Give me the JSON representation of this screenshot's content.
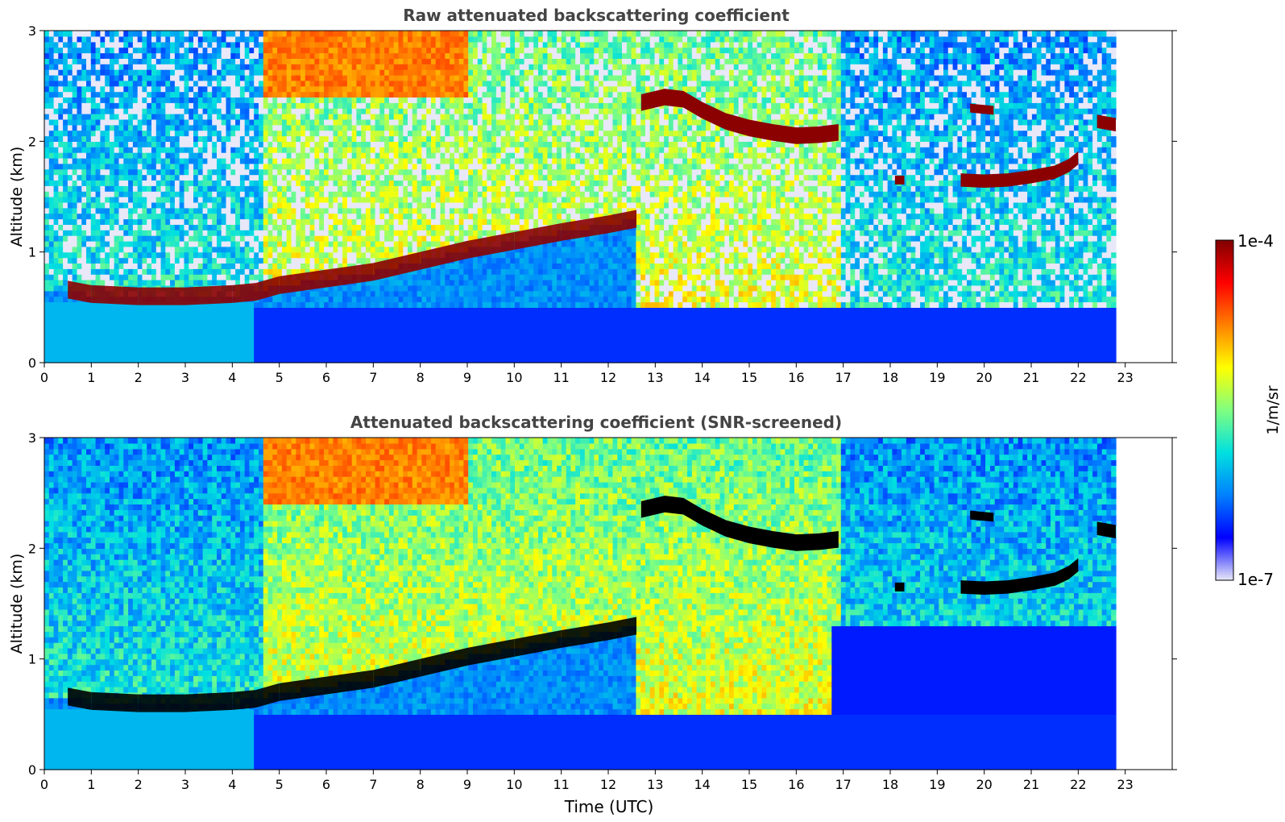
{
  "figure": {
    "xlabel": "Time (UTC)",
    "colorbar": {
      "label": "1/m/sr",
      "max_label": "1e-4",
      "min_label": "1e-7",
      "scale": "log",
      "colormap": "jet",
      "colormap_stops": [
        "#e8e8f8",
        "#0000ff",
        "#0080ff",
        "#00e0e0",
        "#80ff80",
        "#ffff00",
        "#ff8000",
        "#ff0000",
        "#800000"
      ]
    }
  },
  "chart_data": [
    {
      "type": "heatmap",
      "title": "Raw attenuated backscattering coefficient",
      "xlabel": "",
      "ylabel": "Altitude (km)",
      "xlim": [
        0,
        24
      ],
      "ylim": [
        0,
        3
      ],
      "x_ticks": [
        "0",
        "1",
        "2",
        "3",
        "4",
        "5",
        "6",
        "7",
        "8",
        "9",
        "10",
        "11",
        "12",
        "13",
        "14",
        "15",
        "16",
        "17",
        "18",
        "19",
        "20",
        "21",
        "22",
        "23"
      ],
      "y_ticks": [
        "0",
        "1",
        "2",
        "3"
      ],
      "data_extent_hours": [
        0,
        22.8
      ],
      "features": {
        "boundary_layer_top_km": [
          [
            0.5,
            0.66
          ],
          [
            1,
            0.62
          ],
          [
            2,
            0.6
          ],
          [
            3,
            0.6
          ],
          [
            4,
            0.62
          ],
          [
            4.5,
            0.64
          ],
          [
            5,
            0.7
          ],
          [
            6,
            0.76
          ],
          [
            7,
            0.82
          ],
          [
            8,
            0.92
          ],
          [
            9,
            1.02
          ],
          [
            10,
            1.1
          ],
          [
            11,
            1.18
          ],
          [
            12,
            1.25
          ],
          [
            12.6,
            1.3
          ]
        ],
        "cloud_layers": [
          {
            "t": [
              12.7,
              13.2,
              13.6,
              14.0,
              14.5,
              15.0,
              15.5,
              16.0,
              16.5,
              16.9
            ],
            "alt_km": [
              2.35,
              2.4,
              2.38,
              2.28,
              2.18,
              2.12,
              2.08,
              2.05,
              2.06,
              2.08
            ],
            "thickness_km": 0.15
          },
          {
            "t": [
              19.5,
              20.0,
              20.5,
              21.0,
              21.5,
              21.8,
              22.0
            ],
            "alt_km": [
              1.65,
              1.64,
              1.65,
              1.68,
              1.72,
              1.78,
              1.85
            ],
            "thickness_km": 0.12
          },
          {
            "t": [
              18.1,
              18.3
            ],
            "alt_km": [
              1.65,
              1.65
            ],
            "thickness_km": 0.08
          },
          {
            "t": [
              19.7,
              20.2
            ],
            "alt_km": [
              2.3,
              2.28
            ],
            "thickness_km": 0.08
          },
          {
            "t": [
              22.4,
              22.8
            ],
            "alt_km": [
              2.18,
              2.15
            ],
            "thickness_km": 0.12
          }
        ]
      }
    },
    {
      "type": "heatmap",
      "title": "Attenuated backscattering coefficient (SNR-screened)",
      "xlabel": "Time (UTC)",
      "ylabel": "Altitude (km)",
      "xlim": [
        0,
        24
      ],
      "ylim": [
        0,
        3
      ],
      "x_ticks": [
        "0",
        "1",
        "2",
        "3",
        "4",
        "5",
        "6",
        "7",
        "8",
        "9",
        "10",
        "11",
        "12",
        "13",
        "14",
        "15",
        "16",
        "17",
        "18",
        "19",
        "20",
        "21",
        "22",
        "23"
      ],
      "y_ticks": [
        "0",
        "1",
        "2",
        "3"
      ],
      "data_extent_hours": [
        0,
        22.8
      ],
      "features": {
        "saturated_color": "#000000",
        "boundary_layer_top_km": [
          [
            0.5,
            0.66
          ],
          [
            1,
            0.62
          ],
          [
            2,
            0.6
          ],
          [
            3,
            0.6
          ],
          [
            4,
            0.62
          ],
          [
            4.5,
            0.64
          ],
          [
            5,
            0.7
          ],
          [
            6,
            0.76
          ],
          [
            7,
            0.82
          ],
          [
            8,
            0.92
          ],
          [
            9,
            1.02
          ],
          [
            10,
            1.1
          ],
          [
            11,
            1.18
          ],
          [
            12,
            1.25
          ],
          [
            12.6,
            1.3
          ]
        ],
        "cloud_layers": [
          {
            "t": [
              12.7,
              13.2,
              13.6,
              14.0,
              14.5,
              15.0,
              15.5,
              16.0,
              16.5,
              16.9
            ],
            "alt_km": [
              2.35,
              2.4,
              2.38,
              2.28,
              2.18,
              2.12,
              2.08,
              2.05,
              2.06,
              2.08
            ],
            "thickness_km": 0.15
          },
          {
            "t": [
              19.5,
              20.0,
              20.5,
              21.0,
              21.5,
              21.8,
              22.0
            ],
            "alt_km": [
              1.65,
              1.64,
              1.65,
              1.68,
              1.72,
              1.78,
              1.85
            ],
            "thickness_km": 0.12
          },
          {
            "t": [
              18.1,
              18.3
            ],
            "alt_km": [
              1.65,
              1.65
            ],
            "thickness_km": 0.08
          },
          {
            "t": [
              19.7,
              20.2
            ],
            "alt_km": [
              2.3,
              2.28
            ],
            "thickness_km": 0.08
          },
          {
            "t": [
              22.4,
              22.8
            ],
            "alt_km": [
              2.18,
              2.15
            ],
            "thickness_km": 0.12
          }
        ]
      }
    }
  ]
}
